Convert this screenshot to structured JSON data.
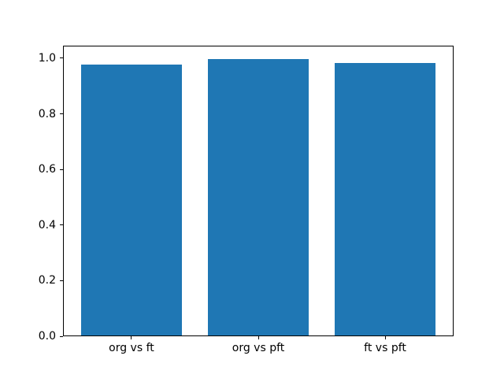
{
  "chart_data": {
    "type": "bar",
    "title": "",
    "xlabel": "",
    "ylabel": "",
    "categories": [
      "org vs ft",
      "org vs pft",
      "ft vs pft"
    ],
    "values": [
      0.978,
      0.997,
      0.982
    ],
    "ylim": [
      0,
      1.045
    ],
    "yticks": [
      0.0,
      0.2,
      0.4,
      0.6,
      0.8,
      1.0
    ],
    "ytick_labels": [
      "0.0",
      "0.2",
      "0.4",
      "0.6",
      "0.8",
      "1.0"
    ],
    "bar_width_fraction": 0.8,
    "bar_color": "#1f77b4",
    "axes_color": "#000000",
    "background_color": "#ffffff",
    "grid": "off",
    "legend": "none"
  }
}
